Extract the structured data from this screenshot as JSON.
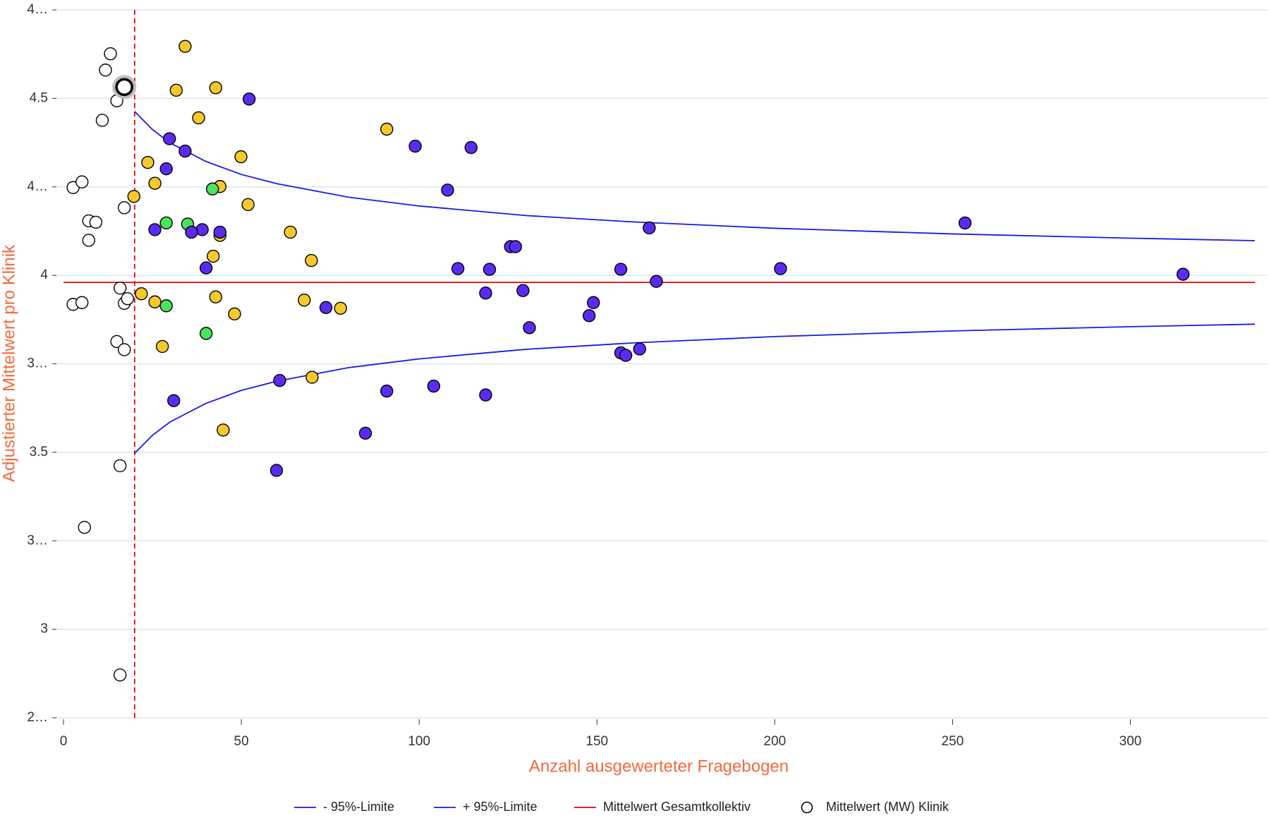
{
  "chart_data": {
    "type": "scatter",
    "xlabel": "Anzahl ausgewerteter Fragebogen",
    "ylabel": "Adjustierter Mittelwert pro Klinik",
    "xlim": [
      0,
      335
    ],
    "ylim": [
      2.75,
      4.75
    ],
    "xticks": [
      0,
      50,
      100,
      150,
      200,
      250,
      300
    ],
    "yticks": [
      {
        "value": 4.75,
        "label": "4…"
      },
      4.5,
      {
        "value": 4.25,
        "label": "4…"
      },
      4,
      {
        "value": 3.75,
        "label": "3…"
      },
      3.5,
      {
        "value": 3.25,
        "label": "3…"
      },
      3,
      {
        "value": 2.75,
        "label": "2…"
      }
    ],
    "grid": true,
    "vline": 20,
    "legend": "bottom",
    "series": [
      {
        "name": "- 95%-Limite",
        "kind": "line",
        "color": "#1a1ae6",
        "x": [
          20,
          25,
          30,
          40,
          50,
          60,
          80,
          100,
          130,
          160,
          200,
          250,
          300,
          335
        ],
        "values": [
          3.497,
          3.548,
          3.586,
          3.638,
          3.675,
          3.701,
          3.739,
          3.764,
          3.791,
          3.809,
          3.827,
          3.843,
          3.855,
          3.862
        ]
      },
      {
        "name": "+ 95%-Limite",
        "kind": "line",
        "color": "#1a1ae6",
        "x": [
          20,
          25,
          30,
          40,
          50,
          60,
          80,
          100,
          130,
          160,
          200,
          250,
          300,
          335
        ],
        "values": [
          4.463,
          4.412,
          4.374,
          4.322,
          4.285,
          4.259,
          4.221,
          4.196,
          4.169,
          4.151,
          4.133,
          4.117,
          4.105,
          4.098
        ]
      },
      {
        "name": "Mittelwert Gesamtkollektiv",
        "kind": "line",
        "color": "#e60000",
        "x": [
          0,
          335
        ],
        "values": [
          3.98,
          3.98
        ]
      },
      {
        "name": "Mittelwert (MW) Klinik",
        "kind": "points",
        "color": "#ffffff",
        "highlight": 10,
        "x": [
          2.7,
          5.2,
          17.1,
          7.1,
          9.1,
          7.1,
          10.9,
          11.8,
          13.2,
          15.0,
          17.1,
          15.9,
          2.7,
          5.2,
          17.1,
          18.0,
          15.0,
          17.1,
          15.9,
          5.9,
          15.9,
          34.2,
          31.7,
          42.8,
          38.0,
          23.7,
          49.9,
          25.7,
          44.0,
          19.8,
          51.9,
          90.9,
          63.8,
          44.0,
          42.1,
          69.7,
          21.9,
          25.7,
          42.8,
          67.7,
          48.1,
          77.9,
          27.8,
          69.9,
          44.9,
          28.9,
          34.9,
          41.9,
          28.9,
          40.1,
          52.2,
          29.8,
          34.2,
          28.9,
          25.7,
          39.0,
          36.0,
          44.0,
          40.1,
          98.9,
          114.6,
          108.0,
          125.7,
          127.1,
          110.9,
          119.8,
          118.7,
          129.2,
          73.8,
          131.0,
          147.8,
          149.0,
          156.7,
          164.7,
          166.7,
          156.7,
          158.1,
          162.0,
          60.8,
          31.0,
          90.9,
          104.1,
          118.7,
          84.9,
          59.9,
          201.6,
          253.5,
          314.8
        ],
        "values": [
          4.248,
          4.264,
          4.191,
          4.154,
          4.15,
          4.099,
          4.438,
          4.58,
          4.626,
          4.493,
          4.532,
          3.964,
          3.918,
          3.923,
          3.921,
          3.934,
          3.813,
          3.79,
          3.462,
          3.288,
          2.871,
          4.647,
          4.523,
          4.53,
          4.445,
          4.319,
          4.335,
          4.26,
          4.251,
          4.223,
          4.2,
          4.413,
          4.122,
          4.113,
          4.054,
          4.042,
          3.948,
          3.925,
          3.939,
          3.93,
          3.891,
          3.907,
          3.799,
          3.712,
          3.563,
          4.148,
          4.145,
          4.244,
          3.914,
          3.836,
          4.498,
          4.386,
          4.351,
          4.301,
          4.129,
          4.129,
          4.122,
          4.122,
          4.021,
          4.365,
          4.361,
          4.241,
          4.081,
          4.081,
          4.019,
          4.017,
          3.95,
          3.957,
          3.909,
          3.852,
          3.886,
          3.923,
          4.017,
          4.134,
          3.983,
          3.781,
          3.774,
          3.792,
          3.703,
          3.646,
          3.673,
          3.687,
          3.662,
          3.554,
          3.449,
          4.019,
          4.148,
          4.003
        ],
        "colors": [
          "#ffffff",
          "#ffffff",
          "#ffffff",
          "#ffffff",
          "#ffffff",
          "#ffffff",
          "#ffffff",
          "#ffffff",
          "#ffffff",
          "#ffffff",
          "#ffffff",
          "#ffffff",
          "#ffffff",
          "#ffffff",
          "#ffffff",
          "#ffffff",
          "#ffffff",
          "#ffffff",
          "#ffffff",
          "#ffffff",
          "#ffffff",
          "#f5c92e",
          "#f5c92e",
          "#f5c92e",
          "#f5c92e",
          "#f5c92e",
          "#f5c92e",
          "#f5c92e",
          "#f5c92e",
          "#f5c92e",
          "#f5c92e",
          "#f5c92e",
          "#f5c92e",
          "#f5c92e",
          "#f5c92e",
          "#f5c92e",
          "#f5c92e",
          "#f5c92e",
          "#f5c92e",
          "#f5c92e",
          "#f5c92e",
          "#f5c92e",
          "#f5c92e",
          "#f5c92e",
          "#f5c92e",
          "#4be35a",
          "#4be35a",
          "#4be35a",
          "#4be35a",
          "#4be35a",
          "#5a2cf2",
          "#5a2cf2",
          "#5a2cf2",
          "#5a2cf2",
          "#5a2cf2",
          "#5a2cf2",
          "#5a2cf2",
          "#5a2cf2",
          "#5a2cf2",
          "#5a2cf2",
          "#5a2cf2",
          "#5a2cf2",
          "#5a2cf2",
          "#5a2cf2",
          "#5a2cf2",
          "#5a2cf2",
          "#5a2cf2",
          "#5a2cf2",
          "#5a2cf2",
          "#5a2cf2",
          "#5a2cf2",
          "#5a2cf2",
          "#5a2cf2",
          "#5a2cf2",
          "#5a2cf2",
          "#5a2cf2",
          "#5a2cf2",
          "#5a2cf2",
          "#5a2cf2",
          "#5a2cf2",
          "#5a2cf2",
          "#5a2cf2",
          "#5a2cf2",
          "#5a2cf2",
          "#5a2cf2",
          "#5a2cf2",
          "#5a2cf2",
          "#5a2cf2"
        ]
      }
    ]
  }
}
